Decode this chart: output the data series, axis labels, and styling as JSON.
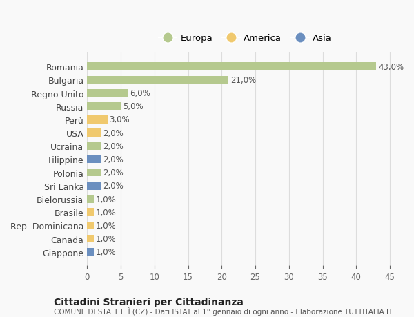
{
  "countries": [
    "Romania",
    "Bulgaria",
    "Regno Unito",
    "Russia",
    "Perù",
    "USA",
    "Ucraina",
    "Filippine",
    "Polonia",
    "Sri Lanka",
    "Bielorussia",
    "Brasile",
    "Rep. Dominicana",
    "Canada",
    "Giappone"
  ],
  "values": [
    43.0,
    21.0,
    6.0,
    5.0,
    3.0,
    2.0,
    2.0,
    2.0,
    2.0,
    2.0,
    1.0,
    1.0,
    1.0,
    1.0,
    1.0
  ],
  "labels": [
    "43,0%",
    "21,0%",
    "6,0%",
    "5,0%",
    "3,0%",
    "2,0%",
    "2,0%",
    "2,0%",
    "2,0%",
    "2,0%",
    "1,0%",
    "1,0%",
    "1,0%",
    "1,0%",
    "1,0%"
  ],
  "continent": [
    "Europa",
    "Europa",
    "Europa",
    "Europa",
    "America",
    "America",
    "Europa",
    "Asia",
    "Europa",
    "Asia",
    "Europa",
    "America",
    "America",
    "America",
    "Asia"
  ],
  "colors": {
    "Europa": "#b5c98e",
    "America": "#f0c96e",
    "Asia": "#6b8fbf"
  },
  "title": "Cittadini Stranieri per Cittadinanza",
  "subtitle": "COMUNE DI STALETTÌ (CZ) - Dati ISTAT al 1° gennaio di ogni anno - Elaborazione TUTTITALIA.IT",
  "xlim": [
    0,
    47
  ],
  "xticks": [
    0,
    5,
    10,
    15,
    20,
    25,
    30,
    35,
    40,
    45
  ],
  "background_color": "#f9f9f9",
  "grid_color": "#dddddd"
}
